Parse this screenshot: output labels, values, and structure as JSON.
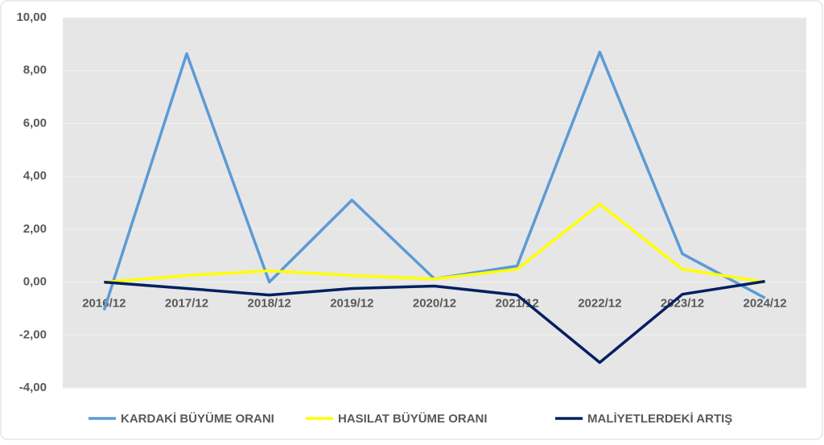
{
  "chart_data": {
    "type": "line",
    "categories": [
      "2016/12",
      "2017/12",
      "2018/12",
      "2019/12",
      "2020/12",
      "2021/12",
      "2022/12",
      "2023/12",
      "2024/12"
    ],
    "series": [
      {
        "name": "KARDAKİ BÜYÜME ORANI",
        "color": "#5b9bd5",
        "values": [
          -1.06,
          8.64,
          0.0,
          3.1,
          0.12,
          0.61,
          8.7,
          1.07,
          -0.6
        ]
      },
      {
        "name": "HASILAT BÜYÜME ORANI",
        "color": "#ffff00",
        "values": [
          0.0,
          0.25,
          0.43,
          0.25,
          0.12,
          0.49,
          2.95,
          0.49,
          0.0
        ]
      },
      {
        "name": "MALİYETLERDEKİ ARTIŞ",
        "color": "#002060",
        "values": [
          0.0,
          -0.24,
          -0.49,
          -0.24,
          -0.15,
          -0.49,
          -3.04,
          -0.46,
          0.03
        ]
      }
    ],
    "ylim": [
      -4,
      10
    ],
    "yticks": [
      {
        "value": -4,
        "label": "-4,00"
      },
      {
        "value": -2,
        "label": "-2,00"
      },
      {
        "value": 0,
        "label": "0,00"
      },
      {
        "value": 2,
        "label": "2,00"
      },
      {
        "value": 4,
        "label": "4,00"
      },
      {
        "value": 6,
        "label": "6,00"
      },
      {
        "value": 8,
        "label": "8,00"
      },
      {
        "value": 10,
        "label": "10,00"
      }
    ],
    "grid": true,
    "legend": "bottom"
  }
}
